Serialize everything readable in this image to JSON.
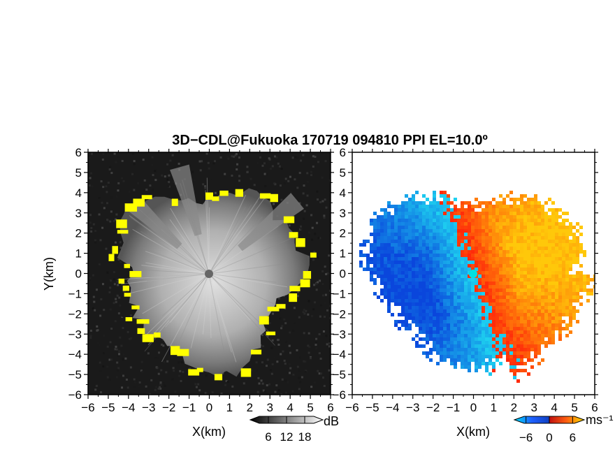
{
  "title": "3D−CDL@Fukuoka 170719 094810 PPI EL=10.0º",
  "chart_data": [
    {
      "type": "heatmap",
      "panel": "reflectivity",
      "xlabel": "X(km)",
      "ylabel": "Y(km)",
      "xlim": [
        -6,
        6
      ],
      "ylim": [
        -6,
        6
      ],
      "xticks": [
        "−6",
        "−5",
        "−4",
        "−3",
        "−2",
        "−1",
        "0",
        "1",
        "2",
        "3",
        "4",
        "5",
        "6"
      ],
      "yticks": [
        "6",
        "5",
        "4",
        "3",
        "2",
        "1",
        "0",
        "−1",
        "−2",
        "−3",
        "−4",
        "−5",
        "−6"
      ],
      "colorbar": {
        "unit": "dB",
        "ticks": [
          "6",
          "12",
          "18"
        ],
        "range": [
          0,
          24
        ]
      },
      "colors": {
        "background": "#1a1a1a",
        "echo": "#bdbdbd",
        "edge": "#ffff00"
      }
    },
    {
      "type": "heatmap",
      "panel": "radial-velocity",
      "xlabel": "X(km)",
      "xlim": [
        -6,
        6
      ],
      "ylim": [
        -6,
        6
      ],
      "xticks": [
        "−6",
        "−5",
        "−4",
        "−3",
        "−2",
        "−1",
        "0",
        "1",
        "2",
        "3",
        "4",
        "5",
        "6"
      ],
      "yticks": [
        "6",
        "5",
        "4",
        "3",
        "2",
        "1",
        "0",
        "−1",
        "−2",
        "−3",
        "−4",
        "−5",
        "−6"
      ],
      "colorbar": {
        "unit": "ms⁻¹",
        "ticks": [
          "−6",
          "0",
          "6"
        ],
        "range": [
          -9,
          9
        ]
      },
      "colors": {
        "negative": "#1e78f0",
        "positive": "#ff5010",
        "center": "#00e0e0"
      }
    }
  ]
}
